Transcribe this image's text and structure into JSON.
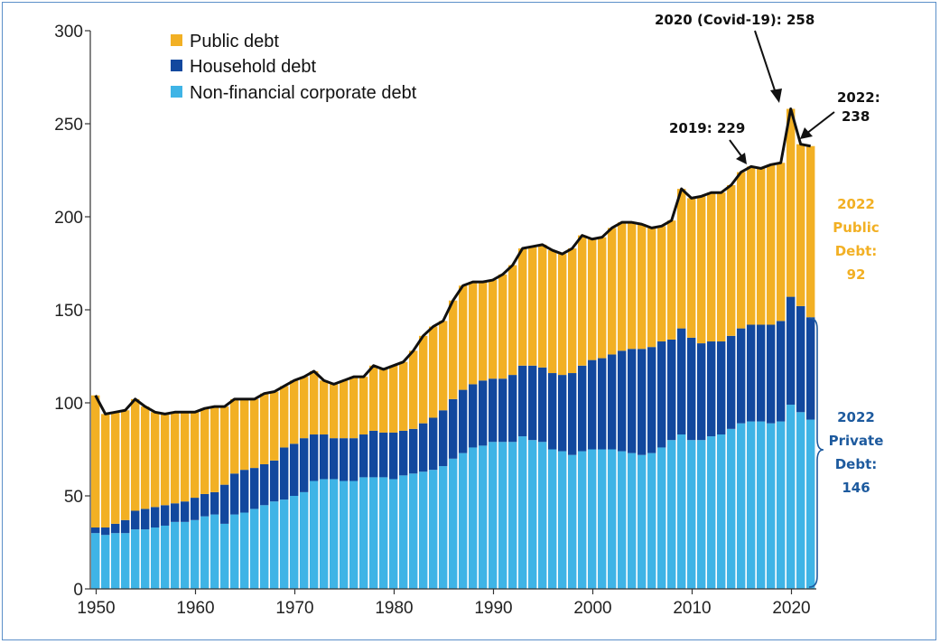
{
  "chart_data": {
    "type": "bar",
    "stacked": true,
    "x": [
      1950,
      1951,
      1952,
      1953,
      1954,
      1955,
      1956,
      1957,
      1958,
      1959,
      1960,
      1961,
      1962,
      1963,
      1964,
      1965,
      1966,
      1967,
      1968,
      1969,
      1970,
      1971,
      1972,
      1973,
      1974,
      1975,
      1976,
      1977,
      1978,
      1979,
      1980,
      1981,
      1982,
      1983,
      1984,
      1985,
      1986,
      1987,
      1988,
      1989,
      1990,
      1991,
      1992,
      1993,
      1994,
      1995,
      1996,
      1997,
      1998,
      1999,
      2000,
      2001,
      2002,
      2003,
      2004,
      2005,
      2006,
      2007,
      2008,
      2009,
      2010,
      2011,
      2012,
      2013,
      2014,
      2015,
      2016,
      2017,
      2018,
      2019,
      2020,
      2021,
      2022
    ],
    "series": [
      {
        "name": "Non-financial corporate debt",
        "color": "#3fb4e6",
        "values": [
          30,
          29,
          30,
          30,
          32,
          32,
          33,
          34,
          36,
          36,
          37,
          39,
          40,
          35,
          40,
          41,
          43,
          45,
          47,
          48,
          50,
          52,
          58,
          59,
          59,
          58,
          58,
          60,
          60,
          60,
          59,
          61,
          62,
          63,
          64,
          66,
          70,
          73,
          76,
          77,
          79,
          79,
          79,
          82,
          80,
          79,
          75,
          74,
          72,
          74,
          75,
          75,
          75,
          74,
          73,
          72,
          73,
          76,
          80,
          83,
          80,
          80,
          82,
          83,
          86,
          89,
          90,
          90,
          89,
          90,
          99,
          95,
          91
        ]
      },
      {
        "name": "Household debt",
        "color": "#12489e",
        "values": [
          3,
          4,
          5,
          7,
          10,
          11,
          11,
          11,
          10,
          11,
          12,
          12,
          12,
          21,
          22,
          23,
          22,
          22,
          22,
          28,
          28,
          29,
          25,
          24,
          22,
          23,
          23,
          23,
          25,
          24,
          25,
          24,
          24,
          26,
          28,
          30,
          32,
          34,
          34,
          35,
          34,
          34,
          36,
          38,
          40,
          40,
          41,
          41,
          44,
          46,
          48,
          49,
          51,
          54,
          56,
          57,
          57,
          57,
          54,
          57,
          55,
          52,
          51,
          50,
          50,
          51,
          52,
          52,
          53,
          54,
          58,
          57,
          55
        ]
      },
      {
        "name": "Public debt",
        "color": "#f2b024",
        "values": [
          71,
          61,
          60,
          59,
          60,
          55,
          51,
          49,
          49,
          48,
          46,
          46,
          46,
          42,
          40,
          38,
          37,
          38,
          37,
          33,
          34,
          33,
          34,
          29,
          29,
          31,
          33,
          31,
          35,
          34,
          36,
          37,
          42,
          47,
          49,
          48,
          53,
          56,
          55,
          53,
          53,
          56,
          59,
          63,
          64,
          66,
          66,
          65,
          67,
          70,
          65,
          65,
          68,
          69,
          68,
          67,
          64,
          62,
          64,
          75,
          75,
          79,
          80,
          80,
          81,
          84,
          85,
          84,
          86,
          85,
          101,
          87,
          92
        ]
      }
    ],
    "ylim": [
      0,
      300
    ],
    "yticks": [
      0,
      50,
      100,
      150,
      200,
      250,
      300
    ],
    "xticks": [
      1950,
      1960,
      1970,
      1980,
      1990,
      2000,
      2010,
      2020
    ],
    "legend_position": "top-left",
    "annotations": {
      "covid": "2020 (Covid-19): 258",
      "y2019": "2019: 229",
      "y2022_line1": "2022:",
      "y2022_line2": "238"
    },
    "side_labels": {
      "public": [
        "2022",
        "Public",
        "Debt:",
        "92"
      ],
      "public_color": "#f2b024",
      "private": [
        "2022",
        "Private",
        "Debt:",
        "146"
      ],
      "private_color": "#1d5a9e"
    }
  }
}
